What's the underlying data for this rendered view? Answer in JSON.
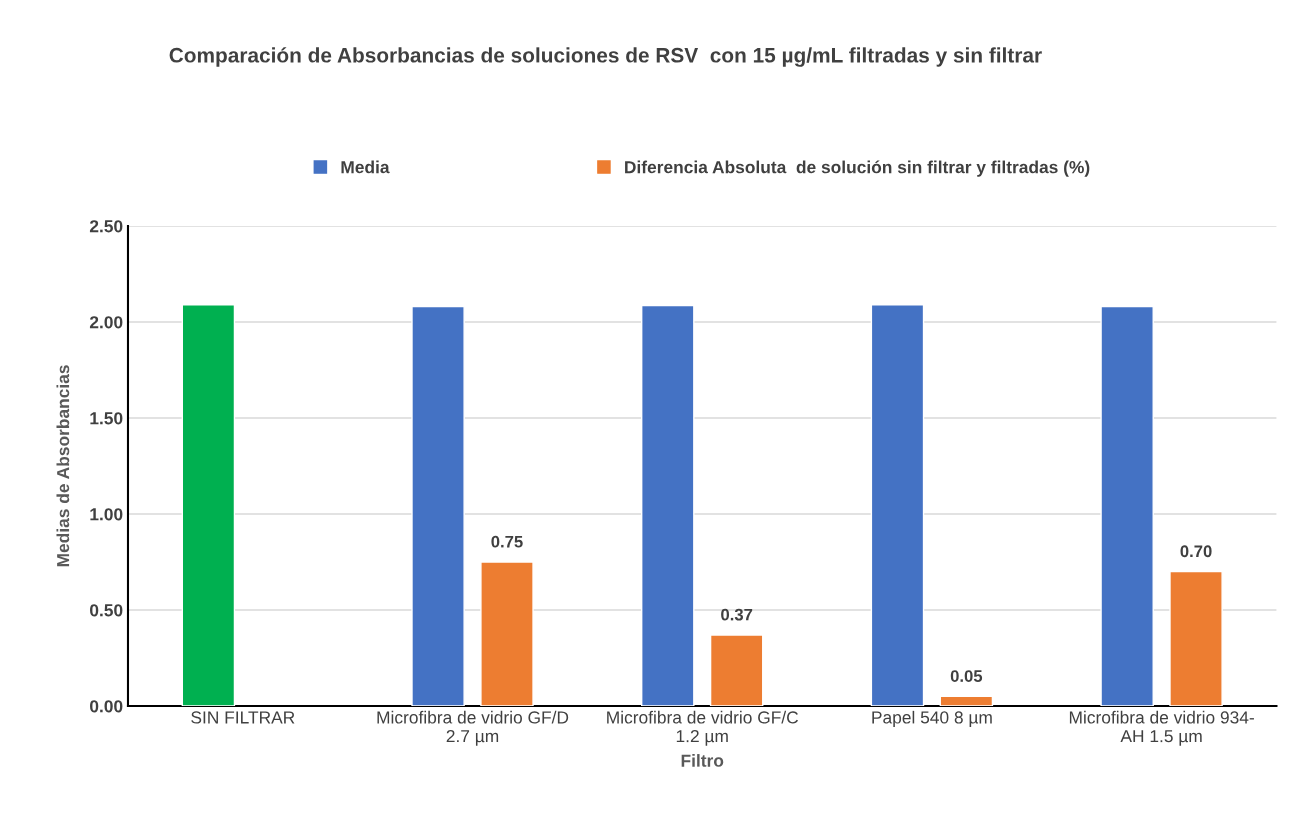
{
  "chart_data": {
    "type": "bar",
    "title": "Comparación de Absorbancias de soluciones de RSV  con 15 µg/mL filtradas y sin filtrar",
    "xlabel": "Filtro",
    "ylabel": "Medias de Absorbancias",
    "categories": [
      "SIN FILTRAR",
      "Microfibra de vidrio GF/D\n2.7 µm",
      "Microfibra de vidrio GF/C\n1.2 µm",
      "Papel 540 8 µm",
      "Microfibra de vidrio 934-\nAH 1.5 µm"
    ],
    "series": [
      {
        "name": "Media",
        "color": "#4472c4",
        "colors": [
          "#00b050",
          "#4472c4",
          "#4472c4",
          "#4472c4",
          "#4472c4"
        ],
        "values": [
          2.09,
          2.08,
          2.085,
          2.09,
          2.08
        ]
      },
      {
        "name": "Diferencia Absoluta  de solución sin filtrar y filtradas (%)",
        "color": "#ed7d31",
        "values": [
          null,
          0.75,
          0.37,
          0.05,
          0.7
        ],
        "value_labels": [
          null,
          "0.75",
          "0.37",
          "0.05",
          "0.70"
        ]
      }
    ],
    "ylim": [
      0,
      2.5
    ],
    "yticks": [
      {
        "value": 0,
        "label": "0.00"
      },
      {
        "value": 0.5,
        "label": "0.50"
      },
      {
        "value": 1.0,
        "label": "1.00"
      },
      {
        "value": 1.5,
        "label": "1.50"
      },
      {
        "value": 2.0,
        "label": "2.00"
      },
      {
        "value": 2.5,
        "label": "2.50"
      }
    ],
    "grid": "y",
    "legend": "top"
  }
}
